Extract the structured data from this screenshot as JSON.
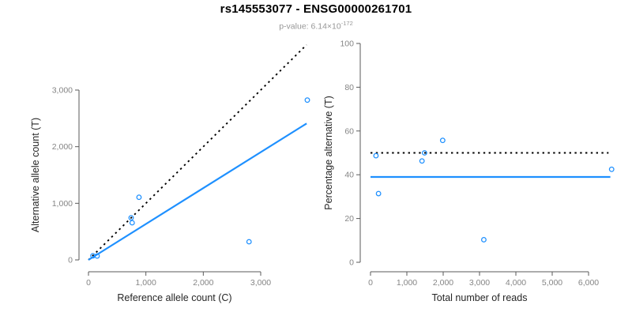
{
  "header": {
    "title": "rs145553077 - ENSG00000261701",
    "pvalue_prefix": "p-value: 6.14×10",
    "pvalue_exponent": "-172"
  },
  "colors": {
    "accent_blue": "#1E90FF",
    "identity_line": "#000000",
    "tick_label_gray": "#858585",
    "axis_gray": "#5a5a5a",
    "subtitle_gray": "#979797"
  },
  "chart_data": [
    {
      "name": "allele-count-scatter",
      "type": "scatter",
      "title": "",
      "xlabel": "Reference allele count (C)",
      "ylabel": "Alternative allele count (T)",
      "xlim": [
        0,
        3860
      ],
      "ylim": [
        0,
        3860
      ],
      "grid": false,
      "legend": null,
      "x_ticks": {
        "values": [
          0,
          1000,
          2000,
          3000
        ],
        "labels": [
          "0",
          "1,000",
          "2,000",
          "3,000"
        ]
      },
      "y_ticks": {
        "values": [
          0,
          1000,
          2000,
          3000
        ],
        "labels": [
          "0",
          "1,000",
          "2,000",
          "3,000"
        ]
      },
      "points": [
        [
          77,
          73
        ],
        [
          151,
          69
        ],
        [
          743,
          744
        ],
        [
          761,
          656
        ],
        [
          880,
          1106
        ],
        [
          2797,
          321
        ],
        [
          3812,
          2823
        ]
      ],
      "point_color": "#1E90FF",
      "lines": [
        {
          "name": "identity-line",
          "style": "dotted",
          "color": "#000000",
          "x1": 0,
          "y1": 0,
          "x2": 3800,
          "y2": 3800
        },
        {
          "name": "regression-line",
          "style": "solid",
          "color": "#1E90FF",
          "x1": 0,
          "y1": 0,
          "x2": 3800,
          "y2": 2410
        }
      ]
    },
    {
      "name": "percentage-alternative-scatter",
      "type": "scatter",
      "title": "",
      "xlabel": "Total number of reads",
      "ylabel": "Percentage alternative (T)",
      "xlim": [
        0,
        6700
      ],
      "ylim": [
        0,
        100
      ],
      "grid": false,
      "legend": null,
      "x_ticks": {
        "values": [
          0,
          1000,
          2000,
          3000,
          4000,
          5000,
          6000
        ],
        "labels": [
          "0",
          "1,000",
          "2,000",
          "3,000",
          "4,000",
          "5,000",
          "6,000"
        ]
      },
      "y_ticks": {
        "values": [
          0,
          20,
          40,
          60,
          80,
          100
        ],
        "labels": [
          "0",
          "20",
          "40",
          "60",
          "80",
          "100"
        ]
      },
      "points": [
        [
          150,
          48.7
        ],
        [
          220,
          31.4
        ],
        [
          1417,
          46.3
        ],
        [
          1487,
          50.0
        ],
        [
          1986,
          55.7
        ],
        [
          3118,
          10.3
        ],
        [
          6635,
          42.5
        ]
      ],
      "point_color": "#1E90FF",
      "lines": [
        {
          "name": "expected-50pct-line",
          "style": "dotted",
          "color": "#000000",
          "x1": 0,
          "y1": 50,
          "x2": 6550,
          "y2": 50
        },
        {
          "name": "regression-line",
          "style": "solid",
          "color": "#1E90FF",
          "x1": 0,
          "y1": 39,
          "x2": 6600,
          "y2": 39
        }
      ]
    }
  ]
}
